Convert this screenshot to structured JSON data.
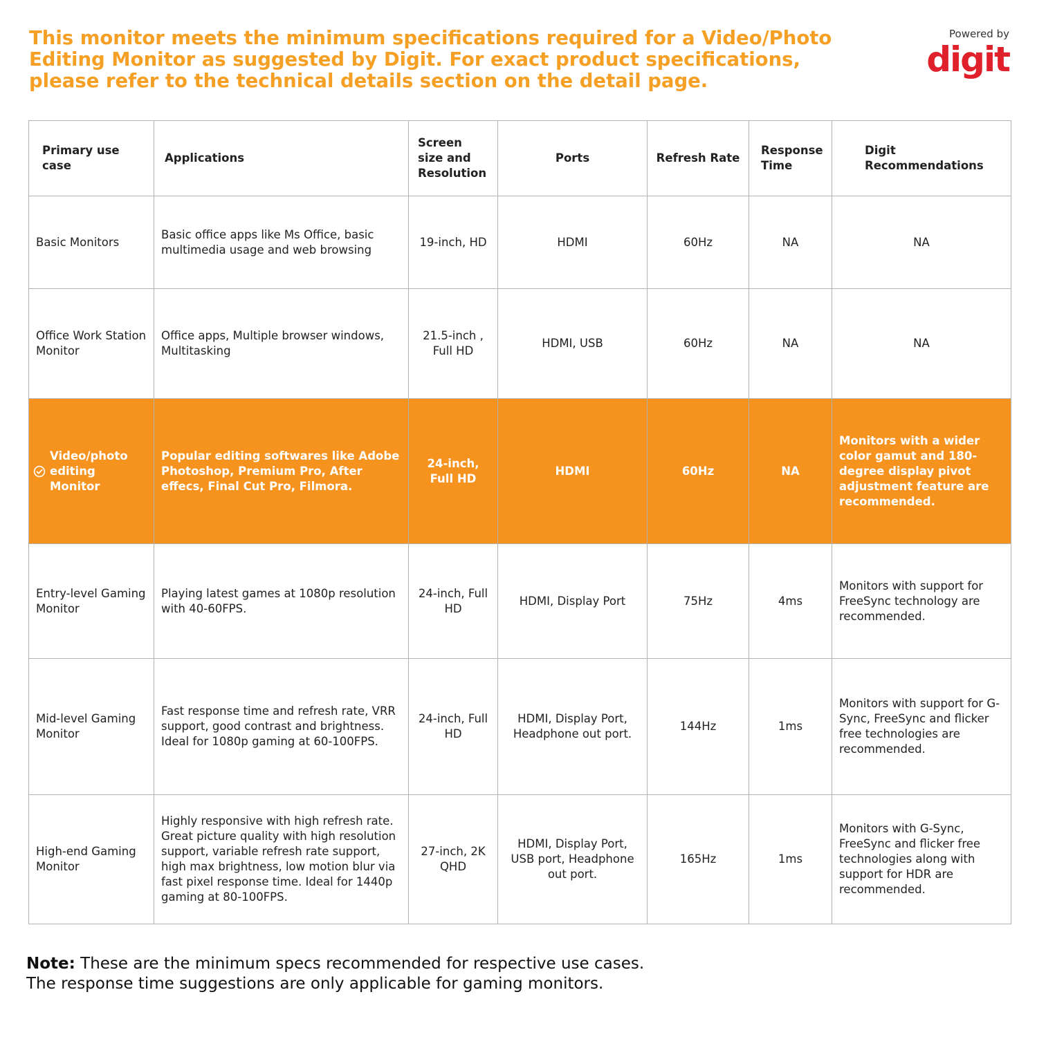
{
  "heading": "This monitor meets the minimum specifications required for a Video/Photo Editing Monitor as suggested by Digit. For exact product specifications, please refer to the technical details section on the detail page.",
  "brand": {
    "powered_by": "Powered by",
    "logo_text": "digit",
    "color": "#e0202a"
  },
  "colors": {
    "accent": "#f5a024",
    "highlight_row": "#f6921e"
  },
  "table": {
    "headers": [
      "Primary use case",
      "Applications",
      "Screen size and Resolution",
      "Ports",
      "Refresh Rate",
      "Response Time",
      "Digit Recommendations"
    ],
    "rows": [
      [
        "Basic Monitors",
        "Basic office apps like Ms Office, basic multimedia usage and web browsing",
        "19-inch, HD",
        "HDMI",
        "60Hz",
        "NA",
        "NA"
      ],
      [
        "Office Work Station Monitor",
        "Office apps, Multiple browser windows, Multitasking",
        "21.5-inch , Full HD",
        "HDMI, USB",
        "60Hz",
        "NA",
        "NA"
      ],
      [
        "Video/photo editing Monitor",
        "Popular editing softwares like Adobe Photoshop, Premium Pro, After effecs, Final Cut Pro, Filmora.",
        "24-inch, Full HD",
        "HDMI",
        "60Hz",
        "NA",
        "Monitors with a wider color gamut and 180-degree display pivot adjustment feature are recommended."
      ],
      [
        "Entry-level Gaming Monitor",
        "Playing latest games at 1080p resolution with 40-60FPS.",
        "24-inch, Full HD",
        "HDMI, Display Port",
        "75Hz",
        "4ms",
        "Monitors with support for FreeSync technology are recommended."
      ],
      [
        "Mid-level Gaming Monitor",
        "Fast response time and refresh rate, VRR support, good contrast and brightness. Ideal for 1080p gaming at 60-100FPS.",
        "24-inch, Full HD",
        "HDMI, Display Port, Headphone out port.",
        "144Hz",
        "1ms",
        "Monitors with support for G-Sync, FreeSync and flicker free technologies are recommended."
      ],
      [
        "High-end Gaming Monitor",
        "Highly responsive with high refresh rate. Great picture quality with high resolution support, variable refresh rate support, high max brightness, low motion blur via fast pixel response time. Ideal for 1440p gaming at 80-100FPS.",
        "27-inch, 2K QHD",
        "HDMI, Display Port, USB port, Headphone out port.",
        "165Hz",
        "1ms",
        "Monitors with G-Sync, FreeSync and flicker free technologies along with support for HDR are recommended."
      ]
    ],
    "highlighted_row_icon": "check-circle-icon"
  },
  "note": {
    "label": "Note:",
    "line1": " These are the minimum specs recommended for respective use cases.",
    "line2": "The response time suggestions are only applicable for gaming monitors."
  }
}
